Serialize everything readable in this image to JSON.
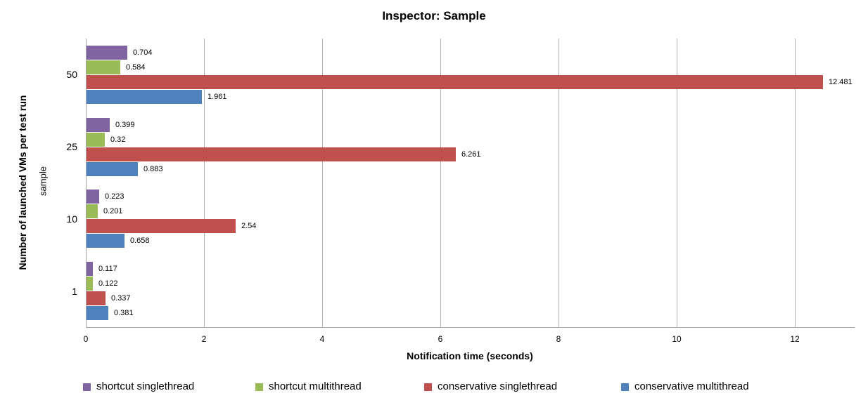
{
  "chart_data": {
    "type": "bar",
    "orientation": "horizontal",
    "title": "Inspector: Sample",
    "xlabel": "Notification time (seconds)",
    "ylabel": "Number of launched VMs per test run",
    "ylabel2": "sample",
    "categories": [
      "50",
      "25",
      "10",
      "1"
    ],
    "xlim": [
      0,
      13
    ],
    "x_ticks": [
      "0",
      "2",
      "4",
      "6",
      "8",
      "10",
      "12"
    ],
    "grid": true,
    "legend_position": "bottom",
    "series": [
      {
        "name": "shortcut singlethread",
        "color": "#8064A2",
        "values": [
          0.704,
          0.399,
          0.223,
          0.117
        ],
        "labels": [
          "0.704",
          "0.399",
          "0.223",
          "0.117"
        ]
      },
      {
        "name": "shortcut multithread",
        "color": "#9BBB59",
        "values": [
          0.584,
          0.32,
          0.201,
          0.122
        ],
        "labels": [
          "0.584",
          "0.32",
          "0.201",
          "0.122"
        ]
      },
      {
        "name": "conservative singlethread",
        "color": "#C0504D",
        "values": [
          12.481,
          6.261,
          2.54,
          0.337
        ],
        "labels": [
          "12.481",
          "6.261",
          "2.54",
          "0.337"
        ]
      },
      {
        "name": "conservative multithread",
        "color": "#4F81BD",
        "values": [
          1.961,
          0.883,
          0.658,
          0.381
        ],
        "labels": [
          "1.961",
          "0.883",
          "0.658",
          "0.381"
        ]
      }
    ]
  }
}
